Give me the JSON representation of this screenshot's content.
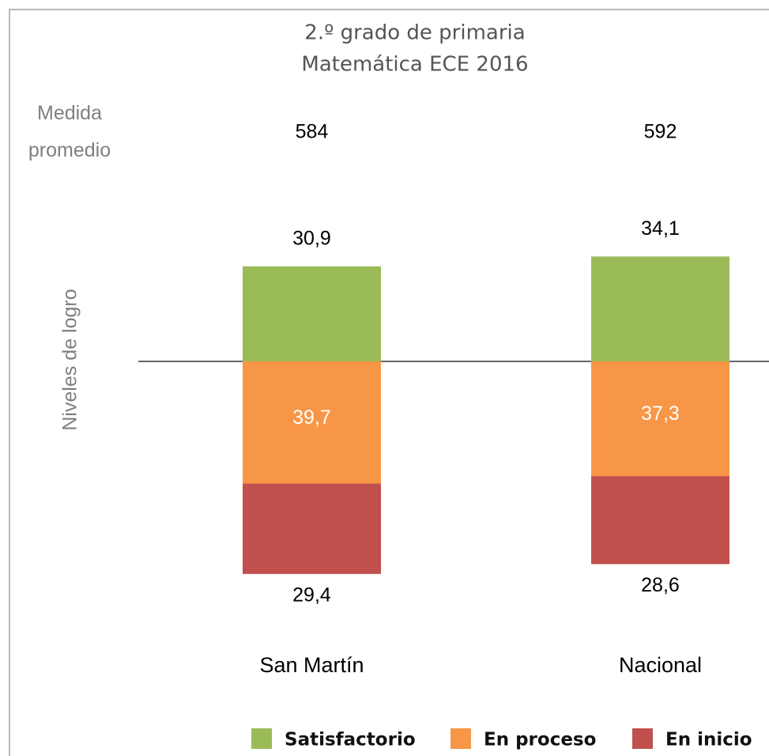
{
  "chart_data": {
    "type": "diverging_bar",
    "title": "2.º grado de primaria",
    "subtitle": "Matemática ECE 2016",
    "axis_label": "Niveles de logro",
    "categories": [
      "San Martín",
      "Nacional"
    ],
    "measure": {
      "label": "Medida promedio",
      "values": [
        584,
        592
      ]
    },
    "series": [
      {
        "name": "Satisfactorio",
        "color": "#9bbb59",
        "values": [
          30.9,
          34.1
        ],
        "value_labels": [
          "30,9",
          "34,1"
        ]
      },
      {
        "name": "En proceso",
        "color": "#f79646",
        "values": [
          39.7,
          37.3
        ],
        "value_labels": [
          "39,7",
          "37,3"
        ]
      },
      {
        "name": "En inicio",
        "color": "#c0504d",
        "values": [
          29.4,
          28.6
        ],
        "value_labels": [
          "29,4",
          "28,6"
        ]
      }
    ],
    "legend": "bottom"
  }
}
